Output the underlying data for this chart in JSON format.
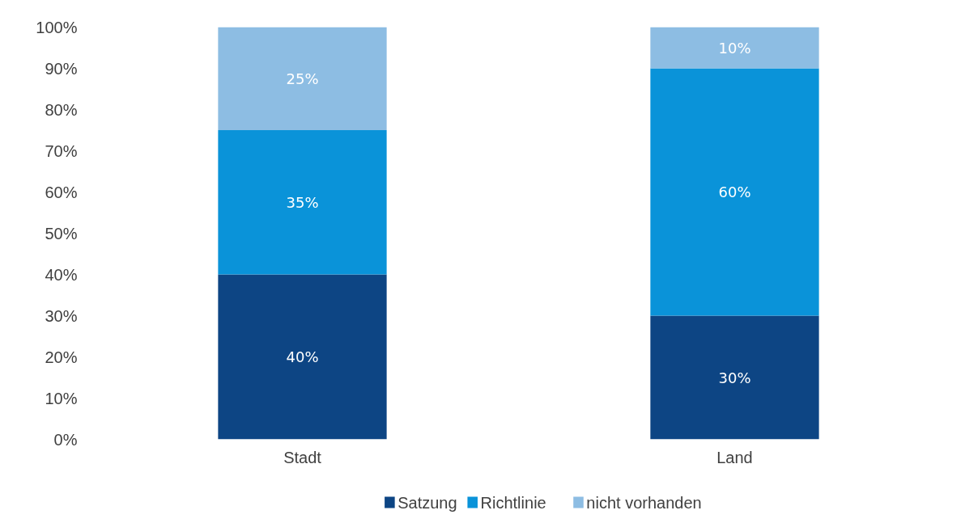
{
  "chart_data": {
    "type": "bar",
    "stacked": true,
    "categories": [
      "Stadt",
      "Land"
    ],
    "series": [
      {
        "name": "Satzung",
        "color": "#0d4584",
        "values": [
          40,
          30
        ]
      },
      {
        "name": "Richtlinie",
        "color": "#0a93d9",
        "values": [
          35,
          60
        ]
      },
      {
        "name": "nicht vorhanden",
        "color": "#8dbde3",
        "values": [
          25,
          10
        ]
      }
    ],
    "ylim": [
      0,
      100
    ],
    "yticks": [
      {
        "value": 0,
        "label": "0%"
      },
      {
        "value": 10,
        "label": "10%"
      },
      {
        "value": 20,
        "label": "20%"
      },
      {
        "value": 30,
        "label": "30%"
      },
      {
        "value": 40,
        "label": "40%"
      },
      {
        "value": 50,
        "label": "50%"
      },
      {
        "value": 60,
        "label": "60%"
      },
      {
        "value": 70,
        "label": "70%"
      },
      {
        "value": 80,
        "label": "80%"
      },
      {
        "value": 90,
        "label": "90%"
      },
      {
        "value": 100,
        "label": "100%"
      }
    ],
    "value_labels": [
      [
        "40%",
        "30%"
      ],
      [
        "35%",
        "60%"
      ],
      [
        "25%",
        "10%"
      ]
    ],
    "legend": "bottom",
    "grid": false
  }
}
